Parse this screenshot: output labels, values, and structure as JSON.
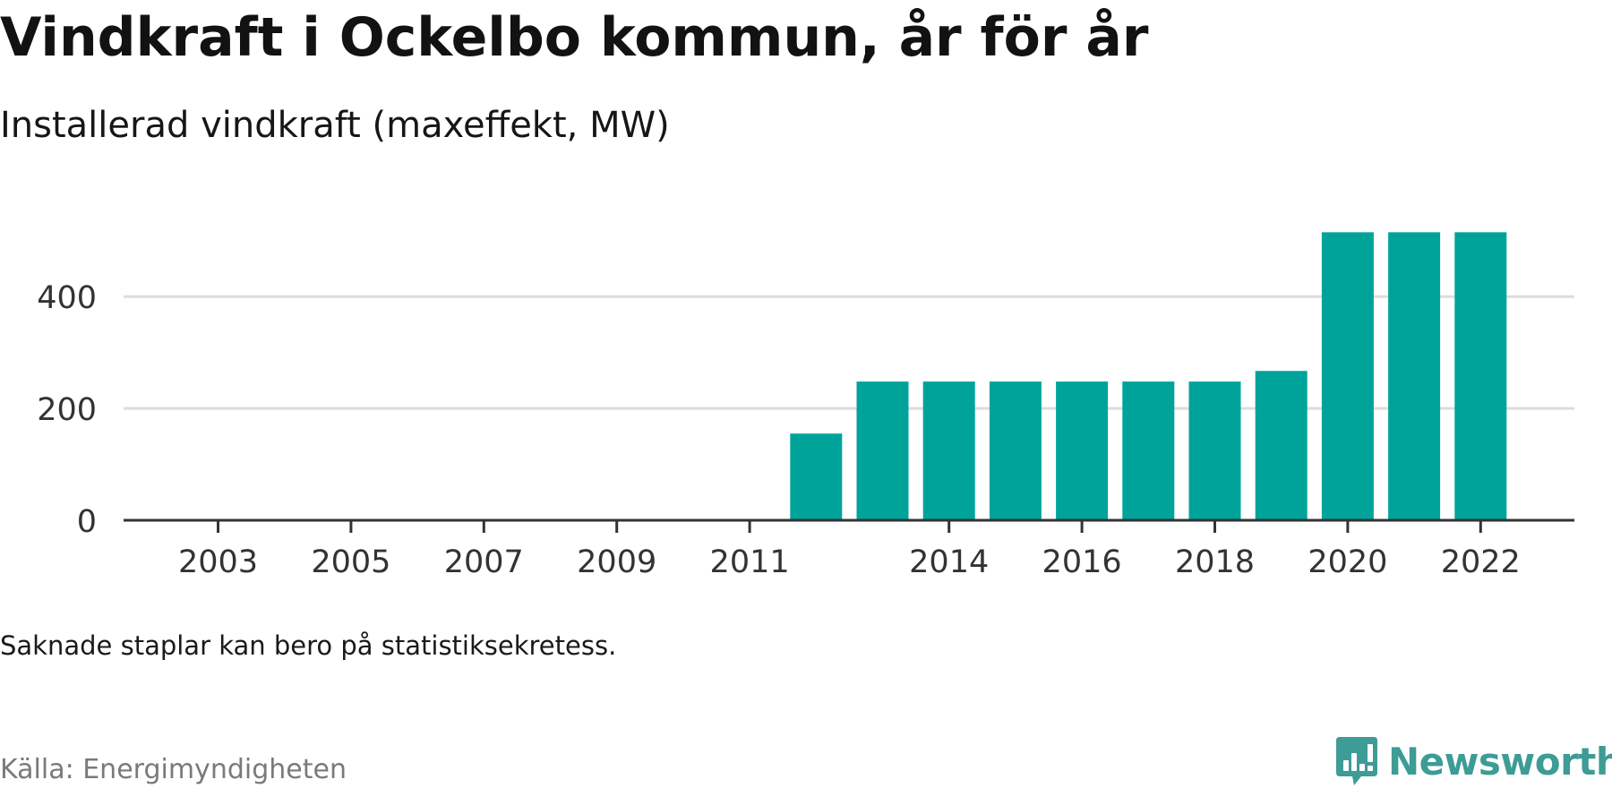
{
  "title": "Vindkraft i Ockelbo kommun, år för år",
  "subtitle": "Installerad vindkraft (maxeffekt, MW)",
  "note": "Saknade staplar kan bero på statistiksekretess.",
  "source": "Källa: Energimyndigheten",
  "brand": {
    "name": "Newsworthy",
    "color": "#3d9c95"
  },
  "chart_data": {
    "type": "bar",
    "categories": [
      "2003",
      "2004",
      "2005",
      "2006",
      "2007",
      "2008",
      "2009",
      "2010",
      "2011",
      "2012",
      "2013",
      "2014",
      "2015",
      "2016",
      "2017",
      "2018",
      "2019",
      "2020",
      "2021",
      "2022"
    ],
    "values": [
      0,
      0,
      0,
      0,
      0,
      0,
      0,
      0,
      0,
      155,
      248,
      248,
      248,
      248,
      248,
      248,
      267,
      515,
      515,
      515
    ],
    "x_tick_labels": [
      "2003",
      "2005",
      "2007",
      "2009",
      "2011",
      "2014",
      "2016",
      "2018",
      "2020",
      "2022"
    ],
    "y_ticks": [
      0,
      200,
      400
    ],
    "ylim": [
      0,
      530
    ],
    "grid": true,
    "bar_color": "#00a39a",
    "gridline_color": "#dddddd",
    "axis_color": "#333333"
  }
}
